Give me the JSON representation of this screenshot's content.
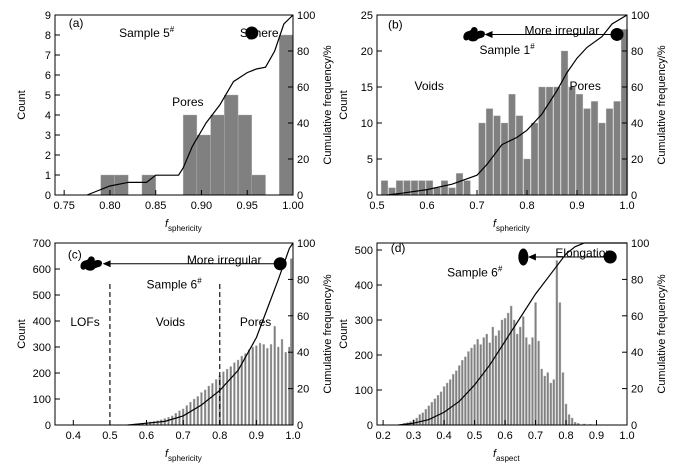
{
  "colors": {
    "bar": "#808080",
    "bar_edge": "#b4b4b4",
    "line": "#000000",
    "axis": "#000000"
  },
  "chart_data": [
    {
      "panel_label": "(a)",
      "type": "bar",
      "ylabel": "Count",
      "y2label": "Cumulative frequency/%",
      "xlabel_main": "f",
      "xlabel_sub": "sphericity",
      "xlim": [
        0.74,
        1.0
      ],
      "ylim": [
        0,
        9
      ],
      "y2lim": [
        0,
        100
      ],
      "xticks": [
        0.75,
        0.8,
        0.85,
        0.9,
        0.95,
        1.0
      ],
      "xtick_labels": [
        "0.75",
        "0.80",
        "0.85",
        "0.90",
        "0.95",
        "1.00"
      ],
      "yticks": [
        0,
        1,
        2,
        3,
        4,
        5,
        6,
        7,
        8,
        9
      ],
      "y2ticks": [
        0,
        20,
        40,
        60,
        80,
        100
      ],
      "bin_width": 0.015,
      "bars": [
        [
          0.7975,
          1
        ],
        [
          0.8125,
          1
        ],
        [
          0.8425,
          1
        ],
        [
          0.8875,
          4
        ],
        [
          0.9025,
          3
        ],
        [
          0.9175,
          4
        ],
        [
          0.9325,
          5
        ],
        [
          0.9475,
          4
        ],
        [
          0.9625,
          1
        ],
        [
          0.9925,
          8
        ]
      ],
      "cumulative": [
        [
          0.775,
          0
        ],
        [
          0.8,
          5
        ],
        [
          0.82,
          7
        ],
        [
          0.84,
          7
        ],
        [
          0.85,
          11
        ],
        [
          0.875,
          11
        ],
        [
          0.88,
          15
        ],
        [
          0.89,
          27
        ],
        [
          0.905,
          40
        ],
        [
          0.92,
          50
        ],
        [
          0.935,
          63
        ],
        [
          0.95,
          68
        ],
        [
          0.96,
          70
        ],
        [
          0.97,
          71
        ],
        [
          0.98,
          80
        ],
        [
          0.99,
          95
        ],
        [
          1.0,
          100
        ]
      ],
      "annotations": [
        {
          "text": "Sample 5",
          "sup": "#",
          "x": 0.81,
          "y": 7.9
        },
        {
          "text": "Sphere",
          "x": 0.942,
          "y": 7.9
        },
        {
          "text": "Pores",
          "x": 0.868,
          "y": 4.45
        }
      ]
    },
    {
      "panel_label": "(b)",
      "type": "bar",
      "ylabel": "Count",
      "y2label": "Cumulative frequency/%",
      "xlabel_main": "f",
      "xlabel_sub": "sphericity",
      "xlim": [
        0.5,
        1.0
      ],
      "ylim": [
        0,
        25
      ],
      "y2lim": [
        0,
        100
      ],
      "xticks": [
        0.5,
        0.6,
        0.7,
        0.8,
        0.9,
        1.0
      ],
      "xtick_labels": [
        "0.5",
        "0.6",
        "0.7",
        "0.8",
        "0.9",
        "1.0"
      ],
      "yticks": [
        0,
        5,
        10,
        15,
        20,
        25
      ],
      "y2ticks": [
        0,
        20,
        40,
        60,
        80,
        100
      ],
      "bin_width": 0.0135,
      "bars": [
        [
          0.515,
          2
        ],
        [
          0.53,
          1
        ],
        [
          0.545,
          2
        ],
        [
          0.56,
          2
        ],
        [
          0.575,
          2
        ],
        [
          0.59,
          2
        ],
        [
          0.605,
          2
        ],
        [
          0.62,
          1
        ],
        [
          0.635,
          2
        ],
        [
          0.65,
          1
        ],
        [
          0.665,
          3
        ],
        [
          0.68,
          2
        ],
        [
          0.71,
          10
        ],
        [
          0.725,
          12
        ],
        [
          0.74,
          11
        ],
        [
          0.755,
          10
        ],
        [
          0.77,
          14
        ],
        [
          0.785,
          11
        ],
        [
          0.8,
          5
        ],
        [
          0.815,
          10
        ],
        [
          0.83,
          15
        ],
        [
          0.845,
          15
        ],
        [
          0.86,
          15
        ],
        [
          0.875,
          20
        ],
        [
          0.89,
          15
        ],
        [
          0.905,
          14
        ],
        [
          0.92,
          12
        ],
        [
          0.935,
          13
        ],
        [
          0.95,
          10
        ],
        [
          0.965,
          12
        ],
        [
          0.98,
          13
        ],
        [
          0.995,
          23
        ]
      ],
      "cumulative": [
        [
          0.52,
          0
        ],
        [
          0.55,
          1
        ],
        [
          0.6,
          3
        ],
        [
          0.65,
          6
        ],
        [
          0.7,
          11
        ],
        [
          0.72,
          17
        ],
        [
          0.75,
          28
        ],
        [
          0.78,
          32
        ],
        [
          0.8,
          36
        ],
        [
          0.83,
          45
        ],
        [
          0.86,
          58
        ],
        [
          0.88,
          68
        ],
        [
          0.9,
          76
        ],
        [
          0.92,
          82
        ],
        [
          0.95,
          88
        ],
        [
          0.97,
          95
        ],
        [
          1.0,
          100
        ]
      ],
      "annotations": [
        {
          "text": "More irregular",
          "x": 0.795,
          "y": 22.3
        },
        {
          "text": "Sample 1",
          "sup": "#",
          "x": 0.705,
          "y": 19.6
        },
        {
          "text": "Voids",
          "x": 0.575,
          "y": 14.6
        },
        {
          "text": "Pores",
          "x": 0.885,
          "y": 14.6
        }
      ]
    },
    {
      "panel_label": "(c)",
      "type": "bar",
      "ylabel": "Count",
      "y2label": "Cumulative frequency/%",
      "xlabel_main": "f",
      "xlabel_sub": "sphericity",
      "xlim": [
        0.35,
        1.0
      ],
      "ylim": [
        0,
        700
      ],
      "y2lim": [
        0,
        100
      ],
      "xticks": [
        0.4,
        0.5,
        0.6,
        0.7,
        0.8,
        0.9,
        1.0
      ],
      "xtick_labels": [
        "0.4",
        "0.5",
        "0.6",
        "0.7",
        "0.8",
        "0.9",
        "1.0"
      ],
      "yticks": [
        0,
        100,
        200,
        300,
        400,
        500,
        600,
        700
      ],
      "y2ticks": [
        0,
        20,
        40,
        60,
        80,
        100
      ],
      "bin_width": 0.0052,
      "bars": [
        [
          0.55,
          2
        ],
        [
          0.56,
          3
        ],
        [
          0.57,
          4
        ],
        [
          0.58,
          5
        ],
        [
          0.59,
          7
        ],
        [
          0.6,
          9
        ],
        [
          0.61,
          12
        ],
        [
          0.62,
          14
        ],
        [
          0.63,
          17
        ],
        [
          0.64,
          20
        ],
        [
          0.65,
          25
        ],
        [
          0.66,
          30
        ],
        [
          0.67,
          35
        ],
        [
          0.68,
          45
        ],
        [
          0.69,
          55
        ],
        [
          0.7,
          62
        ],
        [
          0.71,
          75
        ],
        [
          0.72,
          88
        ],
        [
          0.73,
          100
        ],
        [
          0.74,
          110
        ],
        [
          0.75,
          125
        ],
        [
          0.76,
          135
        ],
        [
          0.77,
          150
        ],
        [
          0.78,
          160
        ],
        [
          0.79,
          175
        ],
        [
          0.8,
          190
        ],
        [
          0.81,
          205
        ],
        [
          0.82,
          215
        ],
        [
          0.83,
          225
        ],
        [
          0.84,
          240
        ],
        [
          0.85,
          250
        ],
        [
          0.86,
          265
        ],
        [
          0.87,
          275
        ],
        [
          0.88,
          290
        ],
        [
          0.89,
          300
        ],
        [
          0.9,
          305
        ],
        [
          0.91,
          315
        ],
        [
          0.92,
          310
        ],
        [
          0.93,
          295
        ],
        [
          0.94,
          310
        ],
        [
          0.95,
          380
        ],
        [
          0.96,
          300
        ],
        [
          0.97,
          330
        ],
        [
          0.98,
          280
        ],
        [
          0.99,
          300
        ],
        [
          0.995,
          640
        ]
      ],
      "cumulative": [
        [
          0.55,
          0
        ],
        [
          0.6,
          1
        ],
        [
          0.65,
          2
        ],
        [
          0.7,
          5
        ],
        [
          0.75,
          11
        ],
        [
          0.8,
          19
        ],
        [
          0.85,
          30
        ],
        [
          0.9,
          48
        ],
        [
          0.93,
          64
        ],
        [
          0.96,
          80
        ],
        [
          0.99,
          97
        ],
        [
          1.0,
          100
        ]
      ],
      "dashed_lines": [
        0.5,
        0.8
      ],
      "annotations": [
        {
          "text": "More irregular",
          "x": 0.71,
          "y": 620
        },
        {
          "text": "Sample 6",
          "sup": "#",
          "x": 0.6,
          "y": 525
        },
        {
          "text": "LOFs",
          "x": 0.392,
          "y": 380
        },
        {
          "text": "Voids",
          "x": 0.625,
          "y": 380
        },
        {
          "text": "Pores",
          "x": 0.855,
          "y": 380
        }
      ]
    },
    {
      "panel_label": "(d)",
      "type": "bar",
      "ylabel": "Count",
      "y2label": "Cumulative frequency/%",
      "xlabel_main": "f",
      "xlabel_sub": "aspect",
      "xlim": [
        0.18,
        1.0
      ],
      "ylim": [
        0,
        520
      ],
      "y2lim": [
        0,
        100
      ],
      "xticks": [
        0.2,
        0.3,
        0.4,
        0.5,
        0.6,
        0.7,
        0.8,
        0.9,
        1.0
      ],
      "xtick_labels": [
        "0.2",
        "0.3",
        "0.4",
        "0.5",
        "0.6",
        "0.7",
        "0.8",
        "0.9",
        "1.0"
      ],
      "yticks": [
        0,
        100,
        200,
        300,
        400,
        500
      ],
      "y2ticks": [
        0,
        20,
        40,
        60,
        80,
        100
      ],
      "bin_width": 0.0065,
      "bars": [
        [
          0.26,
          2
        ],
        [
          0.27,
          5
        ],
        [
          0.28,
          7
        ],
        [
          0.29,
          10
        ],
        [
          0.3,
          15
        ],
        [
          0.31,
          20
        ],
        [
          0.32,
          30
        ],
        [
          0.33,
          35
        ],
        [
          0.34,
          45
        ],
        [
          0.35,
          55
        ],
        [
          0.36,
          65
        ],
        [
          0.37,
          75
        ],
        [
          0.38,
          85
        ],
        [
          0.39,
          95
        ],
        [
          0.4,
          110
        ],
        [
          0.41,
          120
        ],
        [
          0.42,
          130
        ],
        [
          0.43,
          145
        ],
        [
          0.44,
          155
        ],
        [
          0.45,
          170
        ],
        [
          0.46,
          185
        ],
        [
          0.47,
          195
        ],
        [
          0.48,
          210
        ],
        [
          0.49,
          220
        ],
        [
          0.5,
          230
        ],
        [
          0.51,
          245
        ],
        [
          0.52,
          230
        ],
        [
          0.53,
          250
        ],
        [
          0.54,
          260
        ],
        [
          0.55,
          235
        ],
        [
          0.56,
          280
        ],
        [
          0.57,
          255
        ],
        [
          0.58,
          270
        ],
        [
          0.59,
          300
        ],
        [
          0.6,
          305
        ],
        [
          0.61,
          320
        ],
        [
          0.62,
          340
        ],
        [
          0.63,
          300
        ],
        [
          0.64,
          260
        ],
        [
          0.65,
          280
        ],
        [
          0.66,
          310
        ],
        [
          0.67,
          250
        ],
        [
          0.68,
          230
        ],
        [
          0.69,
          250
        ],
        [
          0.7,
          350
        ],
        [
          0.71,
          240
        ],
        [
          0.72,
          160
        ],
        [
          0.73,
          140
        ],
        [
          0.74,
          150
        ],
        [
          0.75,
          120
        ],
        [
          0.76,
          130
        ],
        [
          0.77,
          470
        ],
        [
          0.78,
          350
        ],
        [
          0.79,
          150
        ],
        [
          0.8,
          60
        ],
        [
          0.81,
          30
        ],
        [
          0.82,
          20
        ],
        [
          0.83,
          8
        ],
        [
          0.84,
          5
        ],
        [
          0.86,
          3
        ],
        [
          0.88,
          2
        ]
      ],
      "cumulative": [
        [
          0.25,
          0
        ],
        [
          0.3,
          1
        ],
        [
          0.35,
          3
        ],
        [
          0.4,
          7
        ],
        [
          0.45,
          13
        ],
        [
          0.5,
          22
        ],
        [
          0.55,
          33
        ],
        [
          0.6,
          46
        ],
        [
          0.65,
          59
        ],
        [
          0.7,
          72
        ],
        [
          0.75,
          83
        ],
        [
          0.8,
          94
        ],
        [
          0.83,
          98
        ],
        [
          0.86,
          100
        ],
        [
          1.0,
          100
        ]
      ],
      "annotations": [
        {
          "text": "Elongation",
          "x": 0.765,
          "y": 480
        },
        {
          "text": "Sample 6",
          "sup": "#",
          "x": 0.41,
          "y": 425
        }
      ]
    }
  ]
}
